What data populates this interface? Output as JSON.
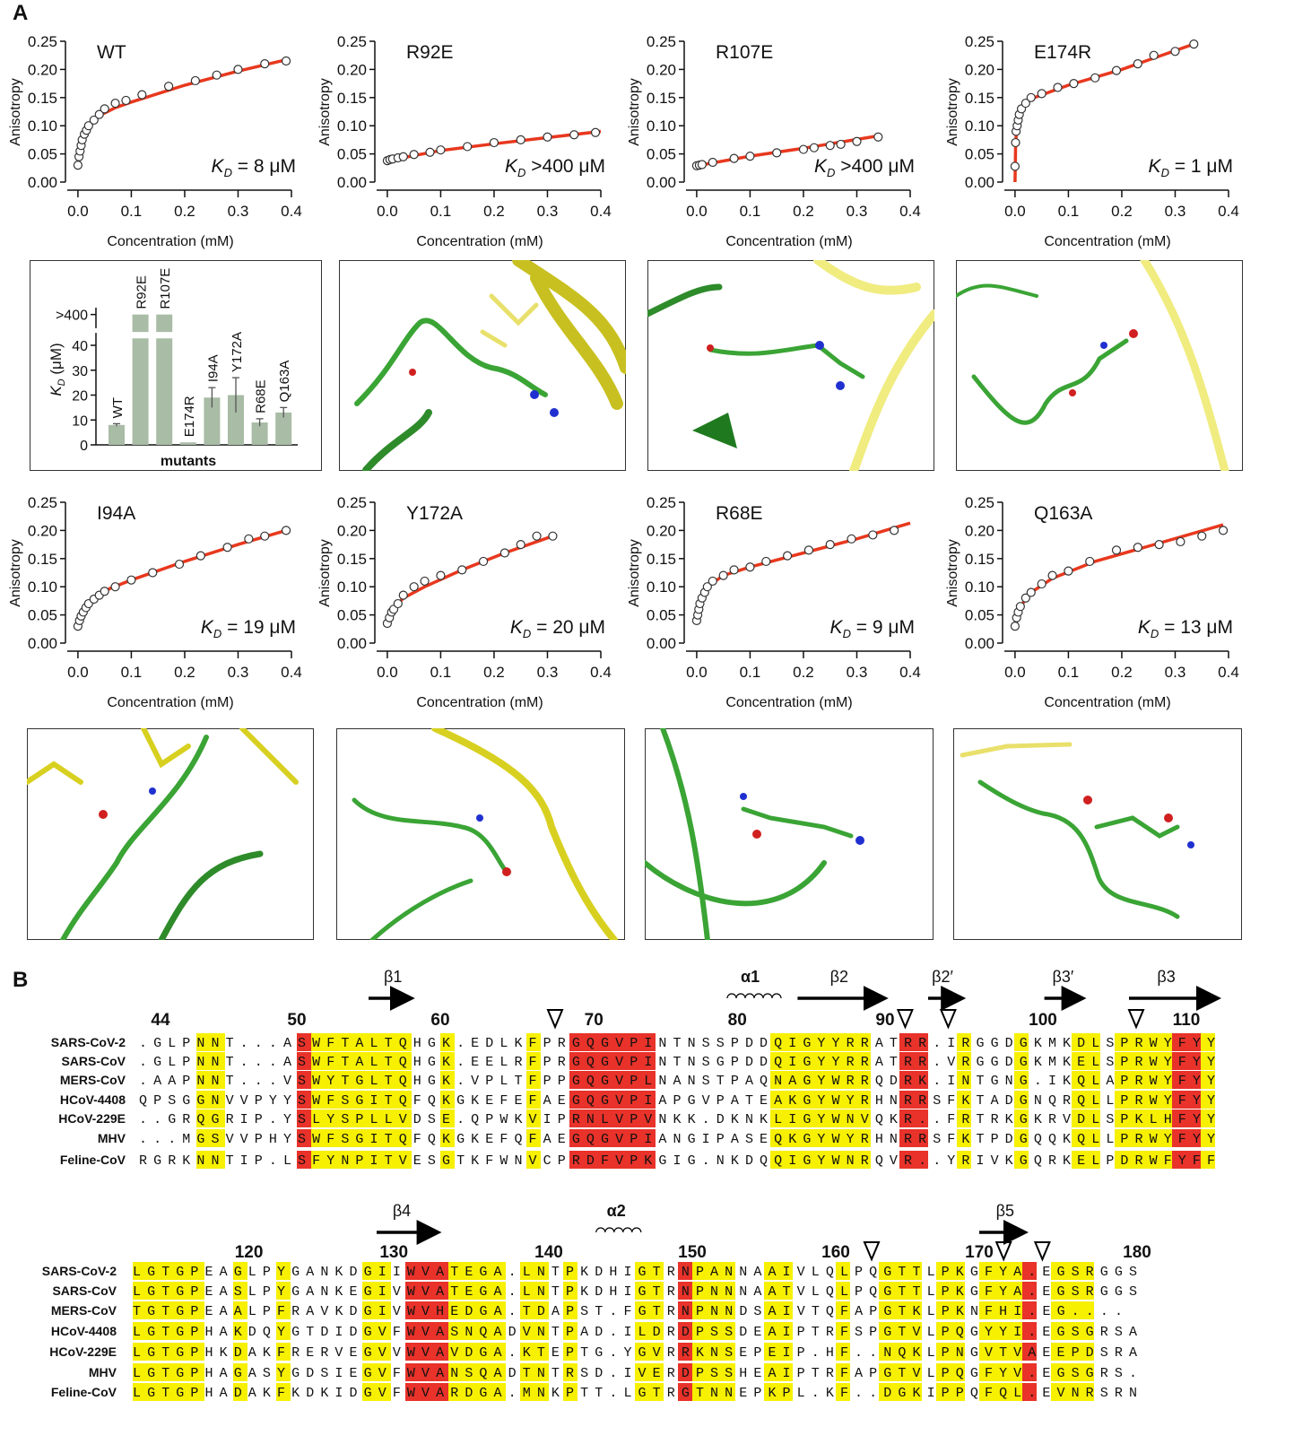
{
  "panel_labels": [
    "A",
    "B"
  ],
  "chart_data": [
    {
      "type": "scatter",
      "title": "WT",
      "xlabel": "Concentration (mM)",
      "ylabel": "Anisotropy",
      "annotation": [
        "K",
        "D",
        " = 8 μM"
      ],
      "x": [
        0,
        0.002,
        0.004,
        0.006,
        0.008,
        0.012,
        0.016,
        0.02,
        0.03,
        0.04,
        0.05,
        0.07,
        0.09,
        0.12,
        0.17,
        0.22,
        0.26,
        0.3,
        0.35,
        0.39
      ],
      "values": [
        0.03,
        0.045,
        0.055,
        0.065,
        0.075,
        0.085,
        0.092,
        0.1,
        0.11,
        0.12,
        0.13,
        0.14,
        0.145,
        0.155,
        0.17,
        0.18,
        0.19,
        0.2,
        0.21,
        0.215
      ],
      "fit": {
        "x": [
          0,
          0.005,
          0.01,
          0.02,
          0.04,
          0.07,
          0.1,
          0.2,
          0.3,
          0.39
        ],
        "values": [
          0.03,
          0.06,
          0.08,
          0.1,
          0.118,
          0.132,
          0.142,
          0.172,
          0.197,
          0.217
        ],
        "color": "#e8381e"
      },
      "marker_color": "#ffffff",
      "xlim": [
        -0.02,
        0.4
      ],
      "ylim": [
        0,
        0.25
      ],
      "xticks": [
        {
          "value": 0,
          "label": "0.0"
        },
        0.1,
        0.2,
        0.3,
        0.4
      ],
      "yticks": [
        {
          "value": 0,
          "label": "0.00"
        },
        0.05,
        {
          "value": 0.1,
          "label": "0.10"
        },
        0.15,
        {
          "value": 0.2,
          "label": "0.20"
        },
        0.25
      ]
    },
    {
      "type": "scatter",
      "title": "R92E",
      "xlabel": "Concentration (mM)",
      "ylabel": "Anisotropy",
      "annotation": [
        "K",
        "D",
        " >400 μM"
      ],
      "x": [
        0,
        0.005,
        0.01,
        0.02,
        0.03,
        0.05,
        0.08,
        0.1,
        0.15,
        0.2,
        0.25,
        0.3,
        0.35,
        0.39
      ],
      "values": [
        0.038,
        0.04,
        0.041,
        0.043,
        0.045,
        0.049,
        0.053,
        0.057,
        0.063,
        0.07,
        0.075,
        0.08,
        0.084,
        0.088
      ],
      "fit": {
        "x": [
          0,
          0.1,
          0.2,
          0.3,
          0.4
        ],
        "values": [
          0.038,
          0.056,
          0.068,
          0.079,
          0.09
        ],
        "color": "#e8381e"
      },
      "marker_color": "#ffffff",
      "xlim": [
        -0.02,
        0.4
      ],
      "ylim": [
        0,
        0.25
      ],
      "xticks": [
        {
          "value": 0,
          "label": "0.0"
        },
        0.1,
        0.2,
        0.3,
        0.4
      ],
      "yticks": [
        {
          "value": 0,
          "label": "0.00"
        },
        0.05,
        {
          "value": 0.1,
          "label": "0.10"
        },
        0.15,
        {
          "value": 0.2,
          "label": "0.20"
        },
        0.25
      ]
    },
    {
      "type": "scatter",
      "title": "R107E",
      "xlabel": "Concentration (mM)",
      "ylabel": "Anisotropy",
      "annotation": [
        "K",
        "D",
        " >400 μM"
      ],
      "x": [
        0,
        0.005,
        0.01,
        0.03,
        0.07,
        0.1,
        0.15,
        0.2,
        0.22,
        0.25,
        0.27,
        0.3,
        0.34
      ],
      "values": [
        0.029,
        0.03,
        0.031,
        0.035,
        0.042,
        0.046,
        0.052,
        0.058,
        0.061,
        0.065,
        0.067,
        0.072,
        0.08
      ],
      "fit": {
        "x": [
          0,
          0.1,
          0.2,
          0.34
        ],
        "values": [
          0.029,
          0.046,
          0.06,
          0.082
        ],
        "color": "#e8381e"
      },
      "marker_color": "#ffffff",
      "xlim": [
        -0.02,
        0.4
      ],
      "ylim": [
        0,
        0.25
      ],
      "xticks": [
        {
          "value": 0,
          "label": "0.0"
        },
        0.1,
        0.2,
        0.3,
        0.4
      ],
      "yticks": [
        {
          "value": 0,
          "label": "0.00"
        },
        0.05,
        {
          "value": 0.1,
          "label": "0.10"
        },
        0.15,
        {
          "value": 0.2,
          "label": "0.20"
        },
        0.25
      ]
    },
    {
      "type": "scatter",
      "title": "E174R",
      "xlabel": "Concentration (mM)",
      "ylabel": "Anisotropy",
      "annotation": [
        "K",
        "D",
        " = 1 μM"
      ],
      "x": [
        0,
        0.001,
        0.002,
        0.004,
        0.006,
        0.008,
        0.012,
        0.02,
        0.03,
        0.05,
        0.08,
        0.11,
        0.15,
        0.19,
        0.23,
        0.26,
        0.3,
        0.335
      ],
      "values": [
        0.028,
        0.07,
        0.09,
        0.1,
        0.11,
        0.12,
        0.13,
        0.14,
        0.15,
        0.157,
        0.168,
        0.175,
        0.185,
        0.198,
        0.21,
        0.225,
        0.232,
        0.245
      ],
      "fit": {
        "x": [
          0,
          0.001,
          0.003,
          0.01,
          0.03,
          0.1,
          0.2,
          0.335
        ],
        "values": [
          0,
          0.06,
          0.1,
          0.13,
          0.148,
          0.172,
          0.2,
          0.245
        ],
        "color": "#e8381e"
      },
      "marker_color": "#ffffff",
      "xlim": [
        -0.02,
        0.4
      ],
      "ylim": [
        0,
        0.25
      ],
      "xticks": [
        {
          "value": 0,
          "label": "0.0"
        },
        0.1,
        0.2,
        0.3,
        0.4
      ],
      "yticks": [
        {
          "value": 0,
          "label": "0.00"
        },
        0.05,
        {
          "value": 0.1,
          "label": "0.10"
        },
        0.15,
        {
          "value": 0.2,
          "label": "0.20"
        },
        0.25
      ]
    },
    {
      "type": "bar",
      "ylabel": [
        "K",
        "D",
        " (μM)"
      ],
      "xlabel": "mutants",
      "categories": [
        "WT",
        "R92E",
        "R107E",
        "E174R",
        "I94A",
        "Y172A",
        "R68E",
        "Q163A"
      ],
      "values": [
        8,
        400,
        400,
        1,
        19,
        20,
        9,
        13
      ],
      "errors": [
        0.5,
        0,
        0,
        0,
        4,
        7,
        1.5,
        2
      ],
      "color": "#a9bca6",
      "ylim": [
        0,
        405
      ],
      "axis_break": [
        45,
        390
      ],
      "yticks": [
        0,
        10,
        20,
        30,
        40,
        {
          "value": 400,
          "label": ">400"
        }
      ]
    },
    {
      "type": "scatter",
      "title": "I94A",
      "xlabel": "Concentration (mM)",
      "ylabel": "Anisotropy",
      "annotation": [
        "K",
        "D",
        " = 19 μM"
      ],
      "x": [
        0,
        0.003,
        0.006,
        0.01,
        0.015,
        0.02,
        0.03,
        0.04,
        0.05,
        0.07,
        0.1,
        0.14,
        0.19,
        0.23,
        0.28,
        0.32,
        0.35,
        0.39
      ],
      "values": [
        0.03,
        0.04,
        0.048,
        0.055,
        0.063,
        0.07,
        0.078,
        0.085,
        0.092,
        0.1,
        0.112,
        0.125,
        0.14,
        0.155,
        0.17,
        0.185,
        0.19,
        0.2
      ],
      "fit": {
        "x": [
          0,
          0.01,
          0.03,
          0.06,
          0.1,
          0.2,
          0.3,
          0.39
        ],
        "values": [
          0.03,
          0.055,
          0.078,
          0.097,
          0.112,
          0.145,
          0.175,
          0.2
        ],
        "color": "#e8381e"
      },
      "marker_color": "#ffffff",
      "xlim": [
        -0.02,
        0.4
      ],
      "ylim": [
        0,
        0.25
      ],
      "xticks": [
        {
          "value": 0,
          "label": "0.0"
        },
        0.1,
        0.2,
        0.3,
        0.4
      ],
      "yticks": [
        {
          "value": 0,
          "label": "0.00"
        },
        0.05,
        {
          "value": 0.1,
          "label": "0.10"
        },
        0.15,
        {
          "value": 0.2,
          "label": "0.20"
        },
        0.25
      ]
    },
    {
      "type": "scatter",
      "title": "Y172A",
      "xlabel": "Concentration (mM)",
      "ylabel": "Anisotropy",
      "annotation": [
        "K",
        "D",
        " = 20 μM"
      ],
      "x": [
        0,
        0.004,
        0.008,
        0.012,
        0.02,
        0.03,
        0.05,
        0.07,
        0.1,
        0.14,
        0.18,
        0.22,
        0.25,
        0.28,
        0.31
      ],
      "values": [
        0.035,
        0.045,
        0.055,
        0.06,
        0.07,
        0.085,
        0.1,
        0.11,
        0.12,
        0.13,
        0.145,
        0.16,
        0.175,
        0.19,
        0.19
      ],
      "fit": {
        "x": [
          0,
          0.01,
          0.03,
          0.07,
          0.14,
          0.22,
          0.31
        ],
        "values": [
          0.035,
          0.06,
          0.08,
          0.1,
          0.13,
          0.16,
          0.19
        ],
        "color": "#e8381e"
      },
      "marker_color": "#ffffff",
      "xlim": [
        -0.02,
        0.4
      ],
      "ylim": [
        0,
        0.25
      ],
      "xticks": [
        {
          "value": 0,
          "label": "0.0"
        },
        0.1,
        0.2,
        0.3,
        0.4
      ],
      "yticks": [
        {
          "value": 0,
          "label": "0.00"
        },
        0.05,
        {
          "value": 0.1,
          "label": "0.10"
        },
        0.15,
        {
          "value": 0.2,
          "label": "0.20"
        },
        0.25
      ]
    },
    {
      "type": "scatter",
      "title": "R68E",
      "xlabel": "Concentration (mM)",
      "ylabel": "Anisotropy",
      "annotation": [
        "K",
        "D",
        " = 9 μM"
      ],
      "x": [
        0,
        0.002,
        0.004,
        0.006,
        0.01,
        0.015,
        0.02,
        0.03,
        0.05,
        0.07,
        0.1,
        0.13,
        0.17,
        0.21,
        0.25,
        0.29,
        0.33,
        0.37
      ],
      "values": [
        0.04,
        0.05,
        0.06,
        0.07,
        0.08,
        0.09,
        0.1,
        0.11,
        0.12,
        0.13,
        0.135,
        0.145,
        0.155,
        0.165,
        0.175,
        0.185,
        0.192,
        0.2
      ],
      "fit": {
        "x": [
          0,
          0.005,
          0.02,
          0.05,
          0.1,
          0.2,
          0.3,
          0.4
        ],
        "values": [
          0.04,
          0.07,
          0.1,
          0.12,
          0.135,
          0.16,
          0.185,
          0.213
        ],
        "color": "#e8381e"
      },
      "marker_color": "#ffffff",
      "xlim": [
        -0.02,
        0.4
      ],
      "ylim": [
        0,
        0.25
      ],
      "xticks": [
        {
          "value": 0,
          "label": "0.0"
        },
        0.1,
        0.2,
        0.3,
        0.4
      ],
      "yticks": [
        {
          "value": 0,
          "label": "0.00"
        },
        0.05,
        {
          "value": 0.1,
          "label": "0.10"
        },
        0.15,
        {
          "value": 0.2,
          "label": "0.20"
        },
        0.25
      ]
    },
    {
      "type": "scatter",
      "title": "Q163A",
      "xlabel": "Concentration (mM)",
      "ylabel": "Anisotropy",
      "annotation": [
        "K",
        "D",
        " = 13 μM"
      ],
      "x": [
        0,
        0.003,
        0.006,
        0.01,
        0.02,
        0.03,
        0.05,
        0.07,
        0.1,
        0.14,
        0.19,
        0.23,
        0.27,
        0.31,
        0.35,
        0.39
      ],
      "values": [
        0.03,
        0.045,
        0.055,
        0.065,
        0.08,
        0.09,
        0.105,
        0.12,
        0.128,
        0.145,
        0.165,
        0.17,
        0.175,
        0.18,
        0.19,
        0.2
      ],
      "fit": {
        "x": [
          0,
          0.01,
          0.03,
          0.07,
          0.15,
          0.25,
          0.39
        ],
        "values": [
          0.03,
          0.065,
          0.09,
          0.115,
          0.145,
          0.172,
          0.21
        ],
        "color": "#e8381e"
      },
      "marker_color": "#ffffff",
      "xlim": [
        -0.02,
        0.4
      ],
      "ylim": [
        0,
        0.25
      ],
      "xticks": [
        {
          "value": 0,
          "label": "0.0"
        },
        0.1,
        0.2,
        0.3,
        0.4
      ],
      "yticks": [
        {
          "value": 0,
          "label": "0.00"
        },
        0.05,
        {
          "value": 0.1,
          "label": "0.10"
        },
        0.15,
        {
          "value": 0.2,
          "label": "0.20"
        },
        0.25
      ]
    }
  ],
  "alignment": {
    "species": [
      "SARS-CoV-2",
      "SARS-CoV",
      "MERS-CoV",
      "HCoV-4408",
      "HCoV-229E",
      "MHV",
      "Feline-CoV"
    ],
    "blocks": [
      {
        "secondary_structure": [
          "β1",
          "α1",
          "β2",
          "β2′",
          "β3′",
          "β3"
        ],
        "residue_numbers": [
          "44",
          "50",
          "60",
          "70",
          "80",
          "90",
          "100",
          "110"
        ],
        "sequences": [
          ".GLPNNT...ASWFTALTQHGK.EDLKFPRGQGVPINTNSSPDDQIGYYRRATRR.IRGGDGKMKDLSPRWYFYY",
          ".GLPNNT...ASWFTALTQHGK.EELRFPRGQGVPINTNSGPDDQIGYYRRATRR.VRGGDGKMKELSPRWYFYY",
          ".AAPNNT...VSWYTGLTQHGK.VPLTFPPGQGVPLNANSTPAQNAGYWRRQDRK.INTGNG.IKQLAPRWYFYY",
          "QPSGGNVVPYYSWFSGITQFQKGKEFEFAEGQGVPIAPGVPATEAKGYWYRHNRRSFKTADGNQRQLLPRWYFYY",
          "..GRQGRIP.YSLYSPLLVDSE.QPWKVIPRNLVPVNKK.DKNKLIGYWNVQKR..FRTRKGKRVDLSPKLHFYY",
          "...MGSVVPHYSWFSGITQFQKGKEFQFAEGQGVPIANGIPASEQKGYWYRHNRRSFKTPDGQQKQLLPRWYFYY",
          "RGRKNNTIP.LSFYNPITVESGTKFWNVCPRDFVPKGIG.NKDQQIGYWNRQVR..YRIVKGQRKELPDRWFYFF"
        ]
      },
      {
        "secondary_structure": [
          "β4",
          "α2",
          "β5"
        ],
        "residue_numbers": [
          "120",
          "130",
          "140",
          "150",
          "160",
          "170",
          "180"
        ],
        "sequences": [
          "LGTGPEAGLPYGANKDGIIWVATEGA.LNTPKDHIGTRNPANNAAIVLQLPQGTTLPKGFYA.EGSRGGS",
          "LGTGPEASLPYGANKEGIVWVATEGA.LNTPKDHIGTRNPNNNAATVLQLPQGTTLPKGFYA.EGSRGGS",
          "TGTGPEAALPFRAVKDGIVWVHEDGA.TDAPST.FGTRNPNNDSAIVTQFAPGTKLPKNFHI.EG....",
          "LGTGPHAKDQYGTDIDGVFWVASNQADVNTPAD.ILDRDPSSDEAIPTRFSPGTVLPQGYYI.EGSGRSA",
          "LGTGPHKDAKFRERVEGVVWVAVDGA.KTEPTG.YGVRRKNSEPEIP.HF..NQKLPNGVTVAEEPDSRA",
          "LGTGPHAGASYGDSIEGVFWVANSQADTNTRSD.IVERDPSSHEAIPTRFAPGTVLPQGFYV.EGSGRS.",
          "LGTGPHADAKFKDKIDGVFWVARDGA.MNKPTT.LGTRGTNNEPKPL.KF..DGKIPPQFQL.EVNRSRN"
        ]
      }
    ]
  }
}
